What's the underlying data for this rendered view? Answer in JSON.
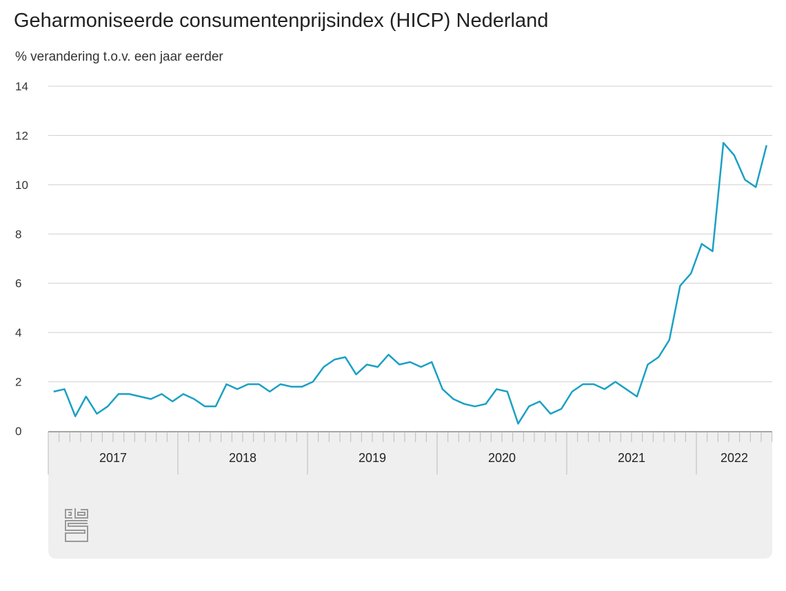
{
  "chart_data": {
    "type": "line",
    "title": "Geharmoniseerde consumentenprijsindex (HICP) Nederland",
    "subtitle": "% verandering t.o.v. een jaar eerder",
    "xlabel": "",
    "ylabel": "% verandering t.o.v. een jaar eerder",
    "ylim": [
      0,
      14
    ],
    "yticks": [
      "0",
      "2",
      "4",
      "6",
      "8",
      "10",
      "12",
      "14"
    ],
    "grid": true,
    "years": [
      "2017",
      "2018",
      "2019",
      "2020",
      "2021",
      "2022"
    ],
    "start": "2017-01",
    "end": "2022-07",
    "series": [
      {
        "name": "HICP Nederland",
        "color": "#1aa0c4",
        "values": [
          1.6,
          1.7,
          0.6,
          1.4,
          0.7,
          1.0,
          1.5,
          1.5,
          1.4,
          1.3,
          1.5,
          1.2,
          1.5,
          1.3,
          1.0,
          1.0,
          1.9,
          1.7,
          1.9,
          1.9,
          1.6,
          1.9,
          1.8,
          1.8,
          2.0,
          2.6,
          2.9,
          3.0,
          2.3,
          2.7,
          2.6,
          3.1,
          2.7,
          2.8,
          2.6,
          2.8,
          1.7,
          1.3,
          1.1,
          1.0,
          1.1,
          1.7,
          1.6,
          0.3,
          1.0,
          1.2,
          0.7,
          0.9,
          1.6,
          1.9,
          1.9,
          1.7,
          2.0,
          1.7,
          1.4,
          2.7,
          3.0,
          3.7,
          5.9,
          6.4,
          7.6,
          7.3,
          11.7,
          11.2,
          10.2,
          9.9,
          11.6
        ]
      }
    ]
  },
  "logo": "cbs"
}
